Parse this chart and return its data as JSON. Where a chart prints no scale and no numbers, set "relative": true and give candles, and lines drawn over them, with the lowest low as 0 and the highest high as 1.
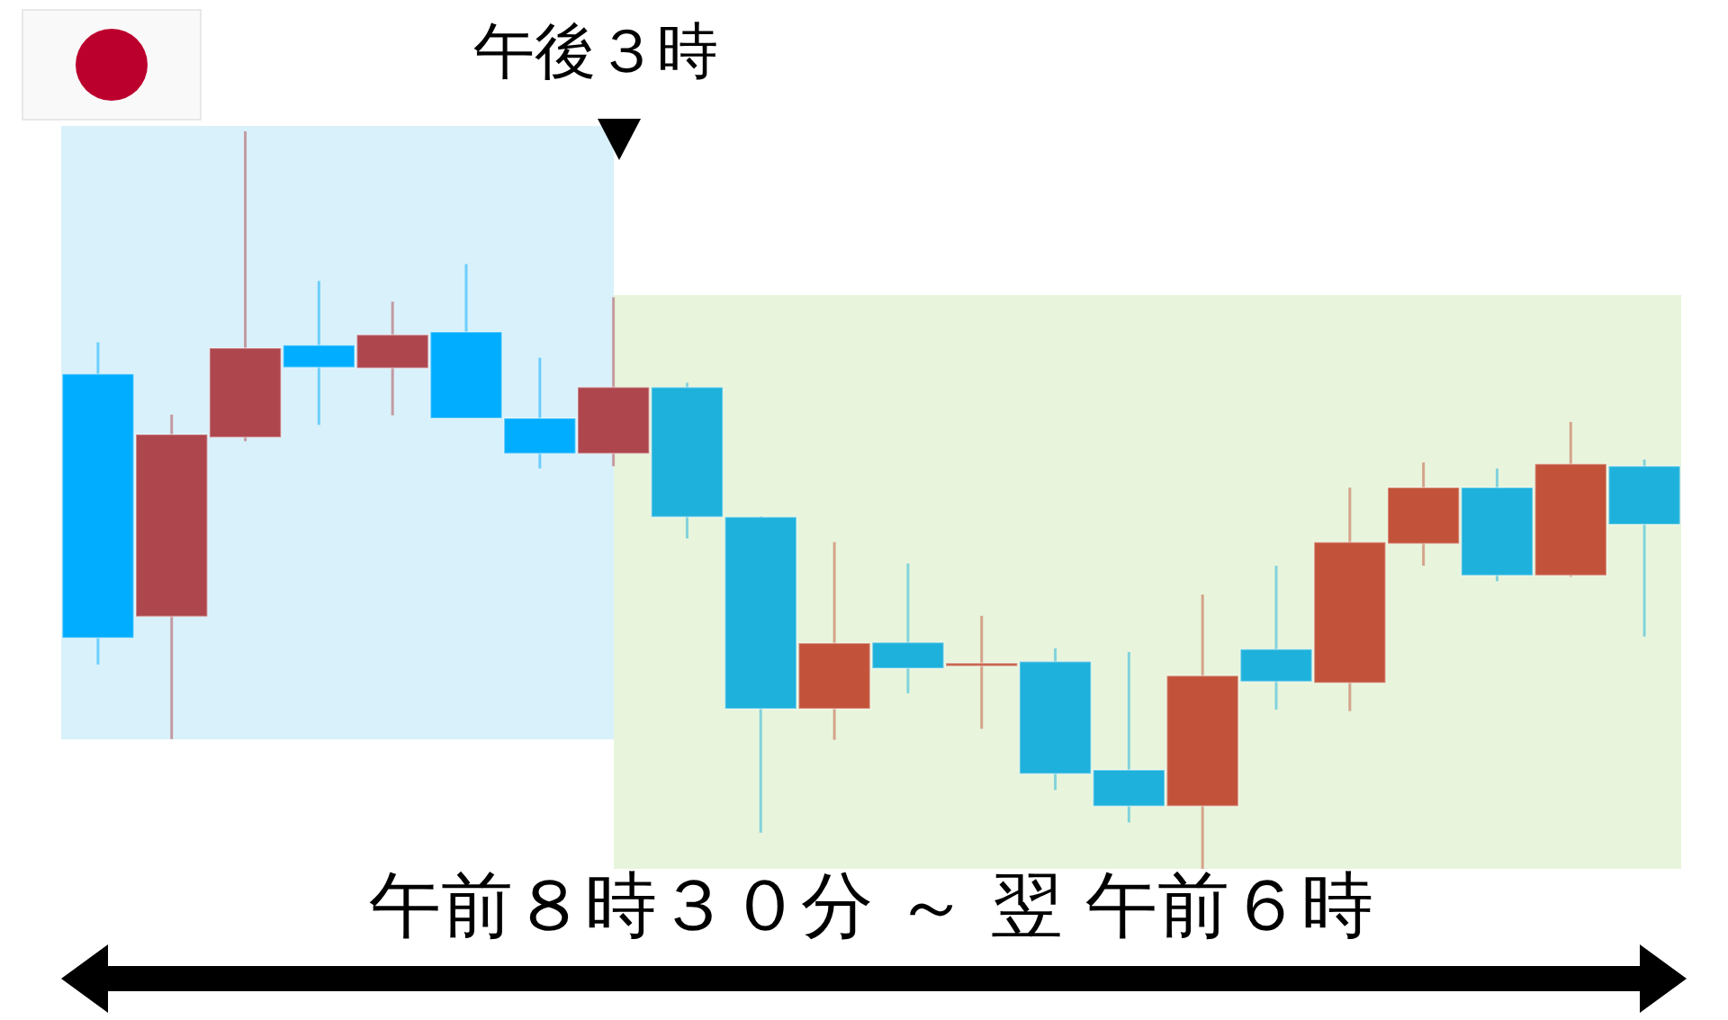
{
  "chart_data": {
    "type": "candlestick",
    "relative": true,
    "categories": [
      null,
      null,
      null,
      null,
      null,
      null,
      null,
      null,
      null,
      null,
      null,
      null,
      null,
      null,
      null,
      null,
      null,
      null,
      null,
      null,
      null,
      null
    ],
    "ohlc": [
      [
        0.671,
        0.714,
        0.277,
        0.313
      ],
      [
        0.342,
        0.616,
        0.176,
        0.589
      ],
      [
        0.585,
        1,
        0.58,
        0.706
      ],
      [
        0.71,
        0.797,
        0.602,
        0.68
      ],
      [
        0.679,
        0.769,
        0.615,
        0.724
      ],
      [
        0.728,
        0.82,
        0.611,
        0.611
      ],
      [
        0.611,
        0.693,
        0.543,
        0.563
      ],
      [
        0.563,
        0.775,
        0.546,
        0.653
      ],
      [
        0.653,
        0.659,
        0.448,
        0.477
      ],
      [
        0.477,
        0.478,
        0.049,
        0.217
      ],
      [
        0.217,
        0.443,
        0.175,
        0.306
      ],
      [
        0.307,
        0.414,
        0.238,
        0.272
      ],
      [
        0.275,
        0.343,
        0.19,
        0.279
      ],
      [
        0.281,
        0.299,
        0.107,
        0.129
      ],
      [
        0.134,
        0.294,
        0.063,
        0.085
      ],
      [
        0.085,
        0.372,
        0,
        0.262
      ],
      [
        0.298,
        0.411,
        0.216,
        0.254
      ],
      [
        0.252,
        0.517,
        0.214,
        0.443
      ],
      [
        0.441,
        0.551,
        0.411,
        0.517
      ],
      [
        0.517,
        0.543,
        0.39,
        0.398
      ],
      [
        0.398,
        0.606,
        0.396,
        0.549
      ],
      [
        0.546,
        0.555,
        0.315,
        0.467
      ]
    ],
    "colors": [
      "#00adff",
      "#ae464e",
      "#ae464e",
      "#00adff",
      "#ae464e",
      "#00adff",
      "#00adff",
      "#ae464e",
      "#1eb1dc",
      "#1eb1dc",
      "#c2533a",
      "#1eb1dc",
      "#c2533a",
      "#1eb1dc",
      "#1eb1dc",
      "#c2533a",
      "#1eb1dc",
      "#c2533a",
      "#c2533a",
      "#1eb1dc",
      "#c2533a",
      "#1eb1dc"
    ],
    "annotations": [
      "午後３時",
      "午前８時３０分 ～ 翌 午前６時"
    ]
  }
}
